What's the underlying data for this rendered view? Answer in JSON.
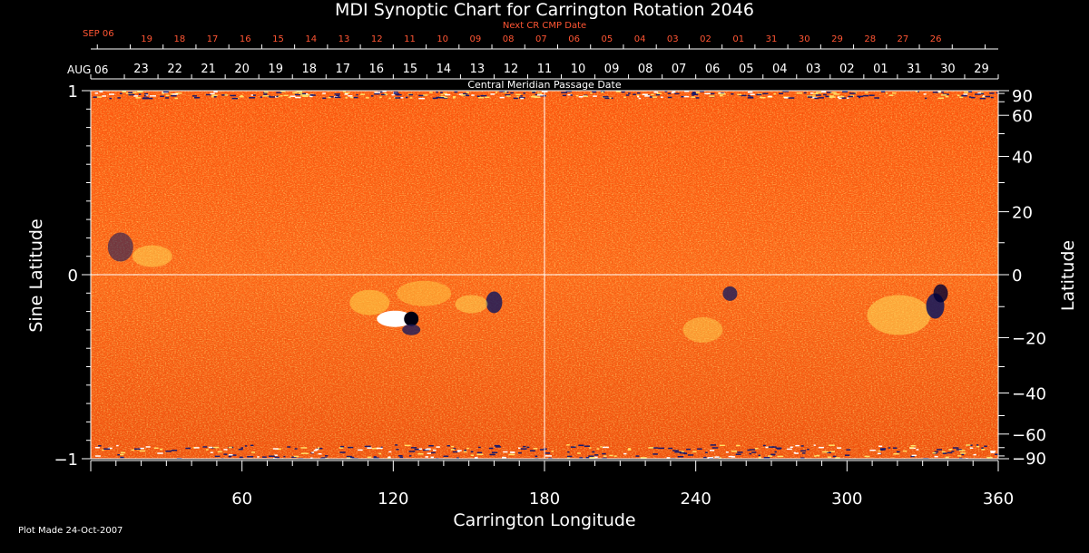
{
  "title": "MDI Synoptic Chart for Carrington Rotation 2046",
  "footer": "Plot Made 24-Oct-2007",
  "chart_data": {
    "type": "heatmap",
    "title": "MDI Synoptic Chart for Carrington Rotation 2046",
    "xlabel": "Carrington Longitude",
    "ylabel_left": "Sine Latitude",
    "ylabel_right": "Latitude",
    "xlim": [
      0,
      360
    ],
    "ylim": [
      -1,
      1
    ],
    "x_ticks": [
      60,
      120,
      180,
      240,
      300,
      360
    ],
    "y_ticks_left": [
      "1",
      "0",
      "−1"
    ],
    "y_ticks_right": [
      "90",
      "60",
      "40",
      "20",
      "0",
      "−20",
      "−40",
      "−60",
      "−90"
    ],
    "y_ticks_right_values": [
      90,
      60,
      40,
      20,
      0,
      -20,
      -40,
      -60,
      -90
    ],
    "colormap": [
      "#000033",
      "#1a1a5a",
      "#cc3300",
      "#ff6a1a",
      "#ffcc33",
      "#ffffff"
    ],
    "top_axis": {
      "label": "Central Meridian Passage Date",
      "start_label": "AUG 06",
      "dates": [
        "23",
        "22",
        "21",
        "20",
        "19",
        "18",
        "17",
        "16",
        "15",
        "14",
        "13",
        "12",
        "11",
        "10",
        "09",
        "08",
        "07",
        "06",
        "05",
        "04",
        "03",
        "02",
        "01",
        "31",
        "30",
        "29"
      ]
    },
    "next_cr_axis": {
      "label": "Next CR CMP Date",
      "start_label": "SEP 06",
      "dates": [
        "19",
        "18",
        "17",
        "16",
        "15",
        "14",
        "13",
        "12",
        "11",
        "10",
        "09",
        "08",
        "07",
        "06",
        "05",
        "04",
        "03",
        "02",
        "01",
        "31",
        "30",
        "29",
        "28",
        "27",
        "26"
      ],
      "color": "#ff5533"
    },
    "features": [
      {
        "name": "bipolar active region",
        "longitude": 125,
        "sine_latitude": -0.24
      },
      {
        "name": "active region",
        "longitude": 335,
        "sine_latitude": -0.17
      },
      {
        "name": "plage",
        "longitude": 160,
        "sine_latitude": -0.15
      },
      {
        "name": "plage",
        "longitude": 250,
        "sine_latitude": -0.3
      },
      {
        "name": "plage",
        "longitude": 10,
        "sine_latitude": 0.15
      }
    ]
  }
}
